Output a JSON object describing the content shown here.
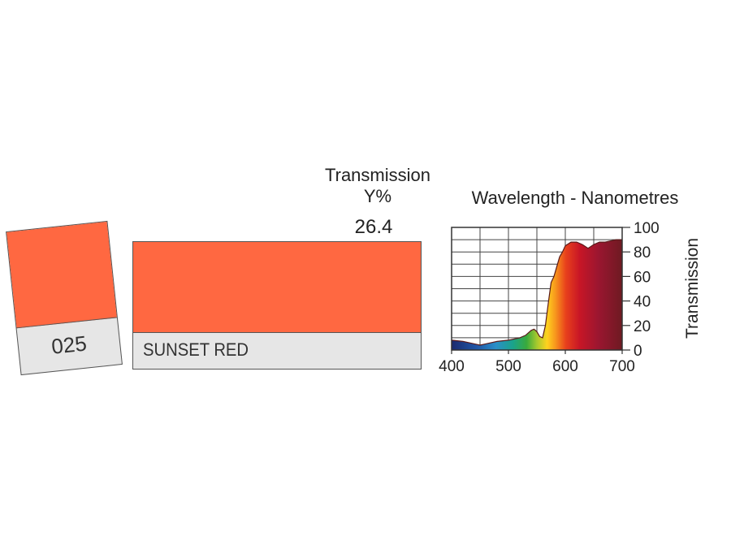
{
  "filter": {
    "number": "025",
    "name": "SUNSET RED",
    "color": "#ff6841",
    "transmission_label_line1": "Transmission",
    "transmission_label_line2": "Y%",
    "transmission_value": "26.4"
  },
  "chart_data": {
    "type": "line",
    "title": "Wavelength - Nanometres",
    "xlabel": "",
    "ylabel": "Transmission",
    "xlim": [
      400,
      700
    ],
    "ylim": [
      0,
      100
    ],
    "x_ticks": [
      "400",
      "500",
      "600",
      "700"
    ],
    "x_tick_values": [
      400,
      500,
      600,
      700
    ],
    "y_ticks": [
      "0",
      "20",
      "40",
      "60",
      "80",
      "100"
    ],
    "y_tick_values": [
      0,
      20,
      40,
      60,
      80,
      100
    ],
    "grid": true,
    "series": [
      {
        "name": "Transmission",
        "x": [
          400,
          420,
          440,
          450,
          460,
          480,
          500,
          520,
          530,
          540,
          545,
          550,
          555,
          560,
          565,
          570,
          575,
          580,
          585,
          590,
          595,
          600,
          610,
          620,
          630,
          640,
          650,
          660,
          670,
          680,
          690,
          700
        ],
        "y": [
          8,
          7,
          5,
          4,
          5,
          7,
          8,
          10,
          12,
          16,
          17,
          15,
          11,
          10,
          20,
          38,
          55,
          60,
          68,
          76,
          80,
          85,
          88,
          88,
          86,
          83,
          86,
          88,
          88,
          89,
          90,
          90
        ]
      }
    ]
  }
}
